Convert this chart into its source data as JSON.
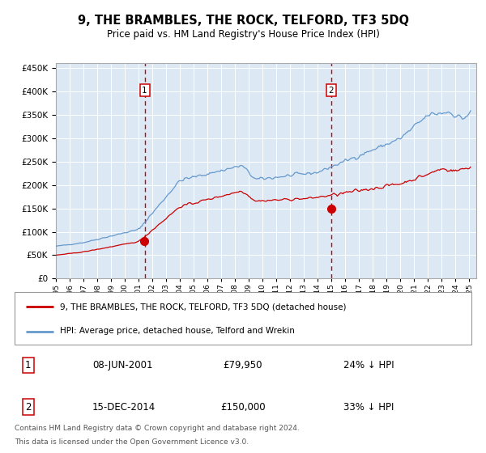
{
  "title": "9, THE BRAMBLES, THE ROCK, TELFORD, TF3 5DQ",
  "subtitle": "Price paid vs. HM Land Registry's House Price Index (HPI)",
  "legend_label_red": "9, THE BRAMBLES, THE ROCK, TELFORD, TF3 5DQ (detached house)",
  "legend_label_blue": "HPI: Average price, detached house, Telford and Wrekin",
  "annotation1_date": "08-JUN-2001",
  "annotation1_price": "£79,950",
  "annotation1_hpi": "24% ↓ HPI",
  "annotation2_date": "15-DEC-2014",
  "annotation2_price": "£150,000",
  "annotation2_hpi": "33% ↓ HPI",
  "footer_line1": "Contains HM Land Registry data © Crown copyright and database right 2024.",
  "footer_line2": "This data is licensed under the Open Government Licence v3.0.",
  "purchase1_year": 2001.44,
  "purchase1_value": 79950,
  "purchase2_year": 2014.96,
  "purchase2_value": 150000,
  "background_color": "#dce9f5",
  "red_line_color": "#cc0000",
  "blue_line_color": "#6699cc",
  "vline_color": "#cc0000",
  "grid_color": "#ffffff",
  "ylim_max": 460000,
  "xlim_min": 1995,
  "xlim_max": 2025.5
}
